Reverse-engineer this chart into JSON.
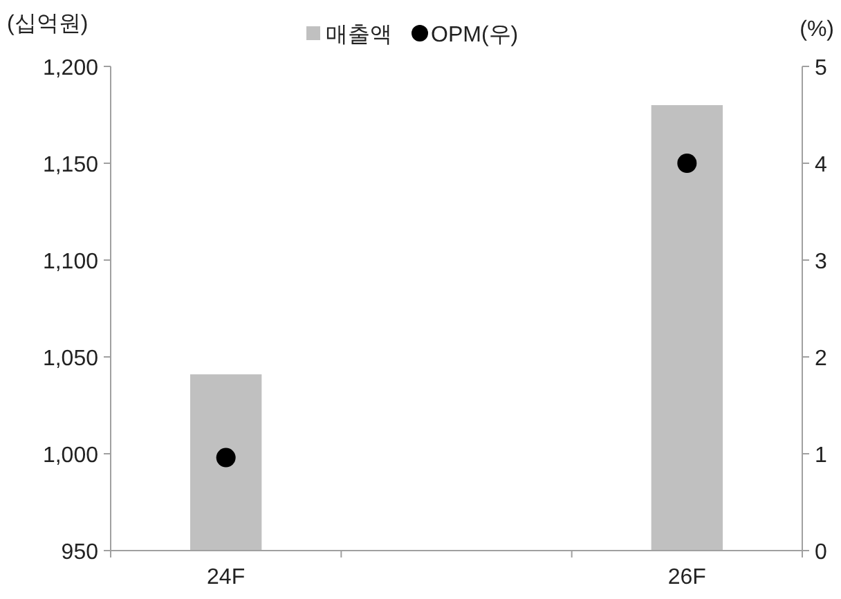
{
  "chart_data": {
    "type": "bar",
    "ylabel": "(십억원)",
    "y2label": "(%)",
    "categories": [
      "24F",
      null,
      "26F"
    ],
    "series": [
      {
        "name": "매출액",
        "color": "#c0c0c0",
        "values": [
          1041,
          null,
          1180
        ]
      },
      {
        "name": "OPM(우)",
        "type": "scatter",
        "axis": "y2",
        "marker": "circle",
        "color": "#000000",
        "values": [
          0.96,
          null,
          4.0
        ]
      }
    ],
    "ylim": [
      950,
      1200
    ],
    "yticks": [
      {
        "value": 950,
        "label": "950"
      },
      {
        "value": 1000,
        "label": "1,000"
      },
      {
        "value": 1050,
        "label": "1,050"
      },
      {
        "value": 1100,
        "label": "1,100"
      },
      {
        "value": 1150,
        "label": "1,150"
      },
      {
        "value": 1200,
        "label": "1,200"
      }
    ],
    "y2lim": [
      0,
      5
    ],
    "y2ticks": [
      0,
      1,
      2,
      3,
      4,
      5
    ],
    "legend": "top",
    "grid": false
  }
}
